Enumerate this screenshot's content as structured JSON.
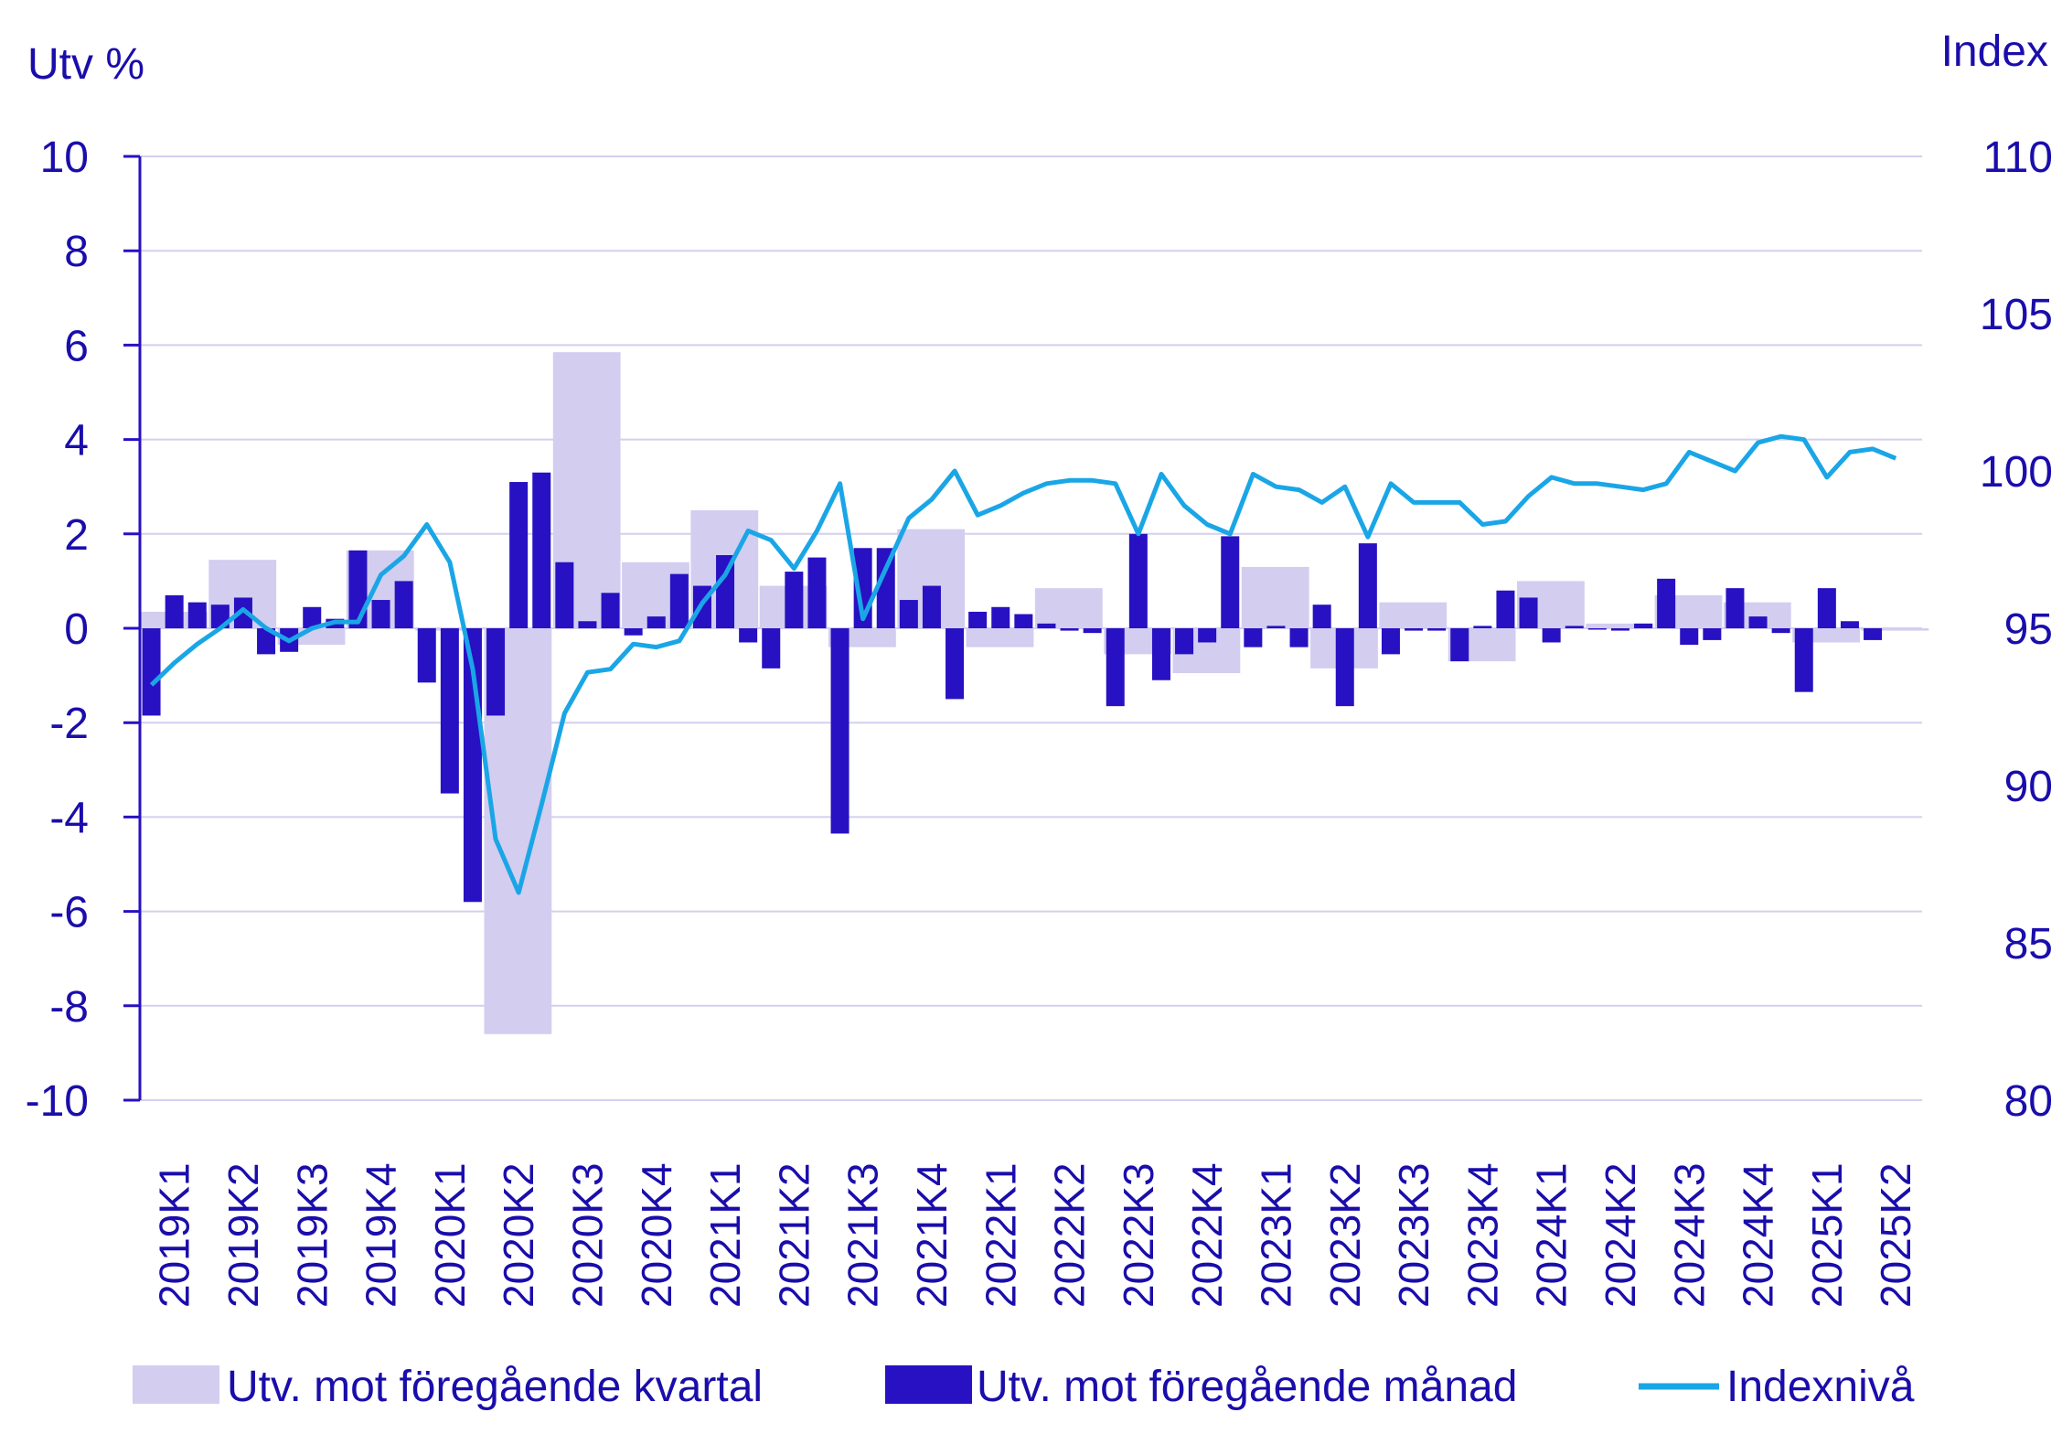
{
  "chart_data": {
    "type": "bar",
    "left_axis_label": "Utv %",
    "right_axis_label": "Index",
    "left_ylim": [
      -10,
      10
    ],
    "left_yticks": [
      "10",
      "8",
      "6",
      "4",
      "2",
      "0",
      "-2",
      "-4",
      "-6",
      "-8",
      "-10"
    ],
    "right_ylim": [
      80,
      110
    ],
    "right_yticks": [
      "110",
      "105",
      "100",
      "95",
      "90",
      "85",
      "80"
    ],
    "quarters": [
      "2019K1",
      "2019K2",
      "2019K3",
      "2019K4",
      "2020K1",
      "2020K2",
      "2020K3",
      "2020K4",
      "2021K1",
      "2021K2",
      "2021K3",
      "2021K4",
      "2022K1",
      "2022K2",
      "2022K3",
      "2022K4",
      "2023K1",
      "2023K2",
      "2023K3",
      "2023K4",
      "2024K1",
      "2024K2",
      "2024K3",
      "2024K4",
      "2025K1",
      "2025K2"
    ],
    "grid": true,
    "legend_position": "bottom",
    "series": [
      {
        "name": "Utv. mot föregående kvartal",
        "kind": "quarterly-bar",
        "color": "#d3cdf0",
        "values": [
          0.35,
          1.45,
          -0.35,
          1.65,
          -0.05,
          -8.6,
          5.85,
          1.4,
          2.5,
          0.9,
          -0.4,
          2.1,
          -0.4,
          0.85,
          -0.55,
          -0.95,
          1.3,
          -0.85,
          0.55,
          -0.7,
          1.0,
          0.1,
          0.7,
          0.55,
          -0.3,
          -0.05
        ]
      },
      {
        "name": "Utv. mot föregående månad",
        "kind": "monthly-bar",
        "color": "#2711c3",
        "values": [
          -1.85,
          0.7,
          0.55,
          0.5,
          0.65,
          -0.55,
          -0.5,
          0.45,
          0.2,
          1.65,
          0.6,
          1.0,
          -1.15,
          -3.5,
          -5.8,
          -1.85,
          3.1,
          3.3,
          1.4,
          0.15,
          0.75,
          -0.15,
          0.25,
          1.15,
          0.9,
          1.55,
          -0.3,
          -0.85,
          1.2,
          1.5,
          -4.35,
          1.7,
          1.7,
          0.6,
          0.9,
          -1.5,
          0.35,
          0.45,
          0.3,
          0.1,
          -0.05,
          -0.1,
          -1.65,
          2.0,
          -1.1,
          -0.55,
          -0.3,
          1.95,
          -0.4,
          0.05,
          -0.4,
          0.5,
          -1.65,
          1.8,
          -0.55,
          -0.05,
          -0.05,
          -0.7,
          0.05,
          0.8,
          0.65,
          -0.3,
          0.05,
          0.0,
          -0.05,
          0.1,
          1.05,
          -0.35,
          -0.25,
          0.85,
          0.25,
          -0.1,
          -1.35,
          0.85,
          0.15,
          -0.25
        ]
      },
      {
        "name": "Indexnivå",
        "kind": "line",
        "color": "#1aa6e6",
        "values": [
          93.2,
          93.9,
          94.5,
          95.0,
          95.6,
          95.0,
          94.6,
          95.0,
          95.2,
          95.2,
          96.7,
          97.3,
          98.3,
          97.1,
          93.7,
          88.3,
          86.6,
          89.4,
          92.3,
          93.6,
          93.7,
          94.5,
          94.4,
          94.6,
          95.8,
          96.7,
          98.1,
          97.8,
          96.9,
          98.1,
          99.6,
          95.3,
          96.9,
          98.5,
          99.1,
          100.0,
          98.6,
          98.9,
          99.3,
          99.6,
          99.7,
          99.7,
          99.6,
          98.0,
          99.9,
          98.9,
          98.3,
          98.0,
          99.9,
          99.5,
          99.4,
          99.0,
          99.5,
          97.9,
          99.6,
          99.0,
          99.0,
          99.0,
          98.3,
          98.4,
          99.2,
          99.8,
          99.6,
          99.6,
          99.5,
          99.4,
          99.6,
          100.6,
          100.3,
          100.0,
          100.9,
          101.1,
          101.0,
          99.8,
          100.6,
          100.7,
          100.4
        ]
      }
    ]
  }
}
